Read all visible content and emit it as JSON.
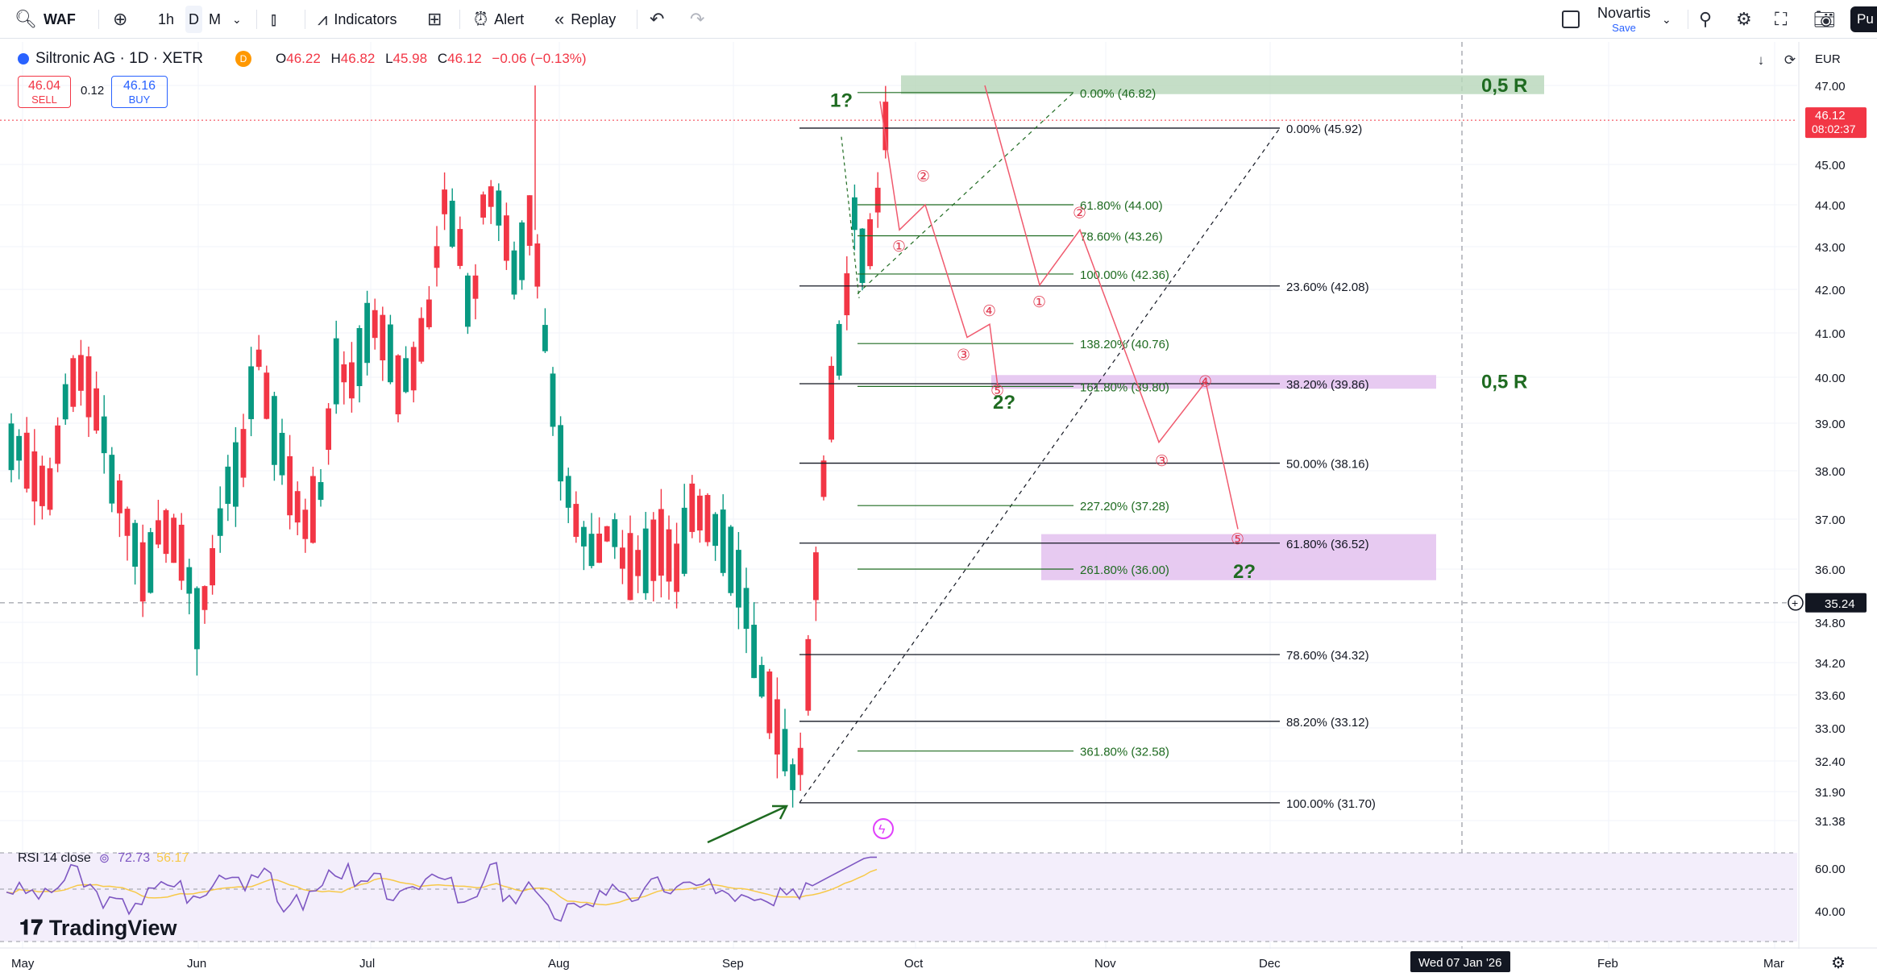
{
  "toolbar": {
    "symbol": "WAF",
    "intervals": [
      "1h",
      "D",
      "M"
    ],
    "active_interval": "D",
    "indicators_label": "Indicators",
    "alert_label": "Alert",
    "replay_label": "Replay",
    "layout_name": "Novartis",
    "layout_save": "Save",
    "publish_label": "Pu"
  },
  "legend": {
    "title": "Siltronic AG · 1D · XETR",
    "o_label": "O",
    "o": "46.22",
    "h_label": "H",
    "h": "46.82",
    "l_label": "L",
    "l": "45.98",
    "c_label": "C",
    "c": "46.12",
    "change": "−0.06 (−0.13%)"
  },
  "trade": {
    "sell_price": "46.04",
    "sell_label": "SELL",
    "spread": "0.12",
    "buy_price": "46.16",
    "buy_label": "BUY"
  },
  "currency": "EUR",
  "price_axis": {
    "labels": [
      {
        "value": 47.0,
        "text": "47.00"
      },
      {
        "value": 45.0,
        "text": "45.00"
      },
      {
        "value": 44.0,
        "text": "44.00"
      },
      {
        "value": 43.0,
        "text": "43.00"
      },
      {
        "value": 42.0,
        "text": "42.00"
      },
      {
        "value": 41.0,
        "text": "41.00"
      },
      {
        "value": 40.0,
        "text": "40.00"
      },
      {
        "value": 39.0,
        "text": "39.00"
      },
      {
        "value": 38.0,
        "text": "38.00"
      },
      {
        "value": 37.0,
        "text": "37.00"
      },
      {
        "value": 36.0,
        "text": "36.00"
      },
      {
        "value": 34.8,
        "text": "34.80"
      },
      {
        "value": 34.2,
        "text": "34.20"
      },
      {
        "value": 33.6,
        "text": "33.60"
      },
      {
        "value": 33.0,
        "text": "33.00"
      },
      {
        "value": 32.4,
        "text": "32.40"
      },
      {
        "value": 31.9,
        "text": "31.90"
      },
      {
        "value": 31.38,
        "text": "31.38"
      }
    ],
    "last_price": "46.12",
    "countdown": "08:02:37",
    "crosshair_price": "35.24"
  },
  "time_axis": {
    "labels": [
      "May",
      "Jun",
      "Jul",
      "Aug",
      "Sep",
      "Oct",
      "Nov",
      "Dec",
      "Feb",
      "Mar"
    ],
    "crosshair_date": "Wed 07 Jan '26"
  },
  "rsi": {
    "name": "RSI 14 close",
    "value": "72.73",
    "ma_value": "56.17",
    "axis_labels": [
      "60.00",
      "40.00"
    ]
  },
  "fib_left": [
    {
      "value": 45.92,
      "text": "0.00% (45.92)"
    },
    {
      "value": 42.08,
      "text": "23.60% (42.08)"
    },
    {
      "value": 39.86,
      "text": "38.20% (39.86)"
    },
    {
      "value": 38.16,
      "text": "50.00% (38.16)"
    },
    {
      "value": 36.52,
      "text": "61.80% (36.52)"
    },
    {
      "value": 34.32,
      "text": "78.60% (34.32)"
    },
    {
      "value": 33.12,
      "text": "88.20% (33.12)"
    },
    {
      "value": 31.7,
      "text": "100.00% (31.70)"
    }
  ],
  "fib_ext": [
    {
      "value": 46.82,
      "text": "0.00% (46.82)"
    },
    {
      "value": 44.0,
      "text": "61.80% (44.00)"
    },
    {
      "value": 43.26,
      "text": "78.60% (43.26)"
    },
    {
      "value": 42.36,
      "text": "100.00% (42.36)"
    },
    {
      "value": 40.76,
      "text": "138.20% (40.76)"
    },
    {
      "value": 39.8,
      "text": "161.80% (39.80)"
    },
    {
      "value": 37.28,
      "text": "227.20% (37.28)"
    },
    {
      "value": 36.0,
      "text": "261.80% (36.00)"
    },
    {
      "value": 32.58,
      "text": "361.80% (32.58)"
    }
  ],
  "annotations": {
    "wave1": "1?",
    "wave2a": "2?",
    "wave2b": "2?",
    "r_top": "0,5 R",
    "r_mid": "0,5 R",
    "circles": [
      "①",
      "②",
      "③",
      "④",
      "⑤"
    ]
  },
  "logo_text": "TradingView",
  "colors": {
    "up": "#089981",
    "down": "#f23645",
    "wave": "#f05a6e",
    "zone_green": "#b7d6b9",
    "zone_purple": "#e4c4ef",
    "label_green": "#1f6b21",
    "rsi_line": "#7e57c2",
    "rsi_ma": "#f7c948"
  }
}
